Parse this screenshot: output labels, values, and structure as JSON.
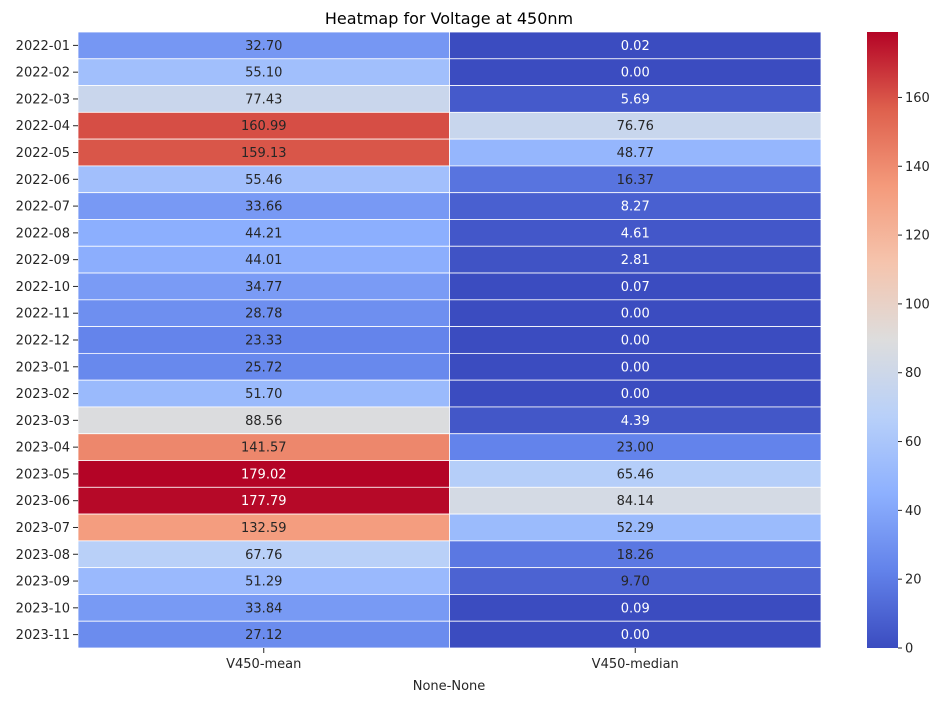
{
  "chart_data": {
    "type": "heatmap",
    "title": "Heatmap for Voltage at 450nm",
    "xlabel": "None-None",
    "ylabel": "",
    "columns": [
      "V450-mean",
      "V450-median"
    ],
    "rows": [
      "2022-01",
      "2022-02",
      "2022-03",
      "2022-04",
      "2022-05",
      "2022-06",
      "2022-07",
      "2022-08",
      "2022-09",
      "2022-10",
      "2022-11",
      "2022-12",
      "2023-01",
      "2023-02",
      "2023-03",
      "2023-04",
      "2023-05",
      "2023-06",
      "2023-07",
      "2023-08",
      "2023-09",
      "2023-10",
      "2023-11"
    ],
    "values": [
      [
        32.7,
        0.02
      ],
      [
        55.1,
        0.0
      ],
      [
        77.43,
        5.69
      ],
      [
        160.99,
        76.76
      ],
      [
        159.13,
        48.77
      ],
      [
        55.46,
        16.37
      ],
      [
        33.66,
        8.27
      ],
      [
        44.21,
        4.61
      ],
      [
        44.01,
        2.81
      ],
      [
        34.77,
        0.07
      ],
      [
        28.78,
        0.0
      ],
      [
        23.33,
        0.0
      ],
      [
        25.72,
        0.0
      ],
      [
        51.7,
        0.0
      ],
      [
        88.56,
        4.39
      ],
      [
        141.57,
        23.0
      ],
      [
        179.02,
        65.46
      ],
      [
        177.79,
        84.14
      ],
      [
        132.59,
        52.29
      ],
      [
        67.76,
        18.26
      ],
      [
        51.29,
        9.7
      ],
      [
        33.84,
        0.09
      ],
      [
        27.12,
        0.0
      ]
    ],
    "value_format_decimals": 2,
    "colormap": "coolwarm",
    "color_range": [
      0,
      179.02
    ],
    "colorbar_ticks": [
      0,
      20,
      40,
      60,
      80,
      100,
      120,
      140,
      160
    ],
    "grid": false,
    "legend": "colorbar-right"
  }
}
